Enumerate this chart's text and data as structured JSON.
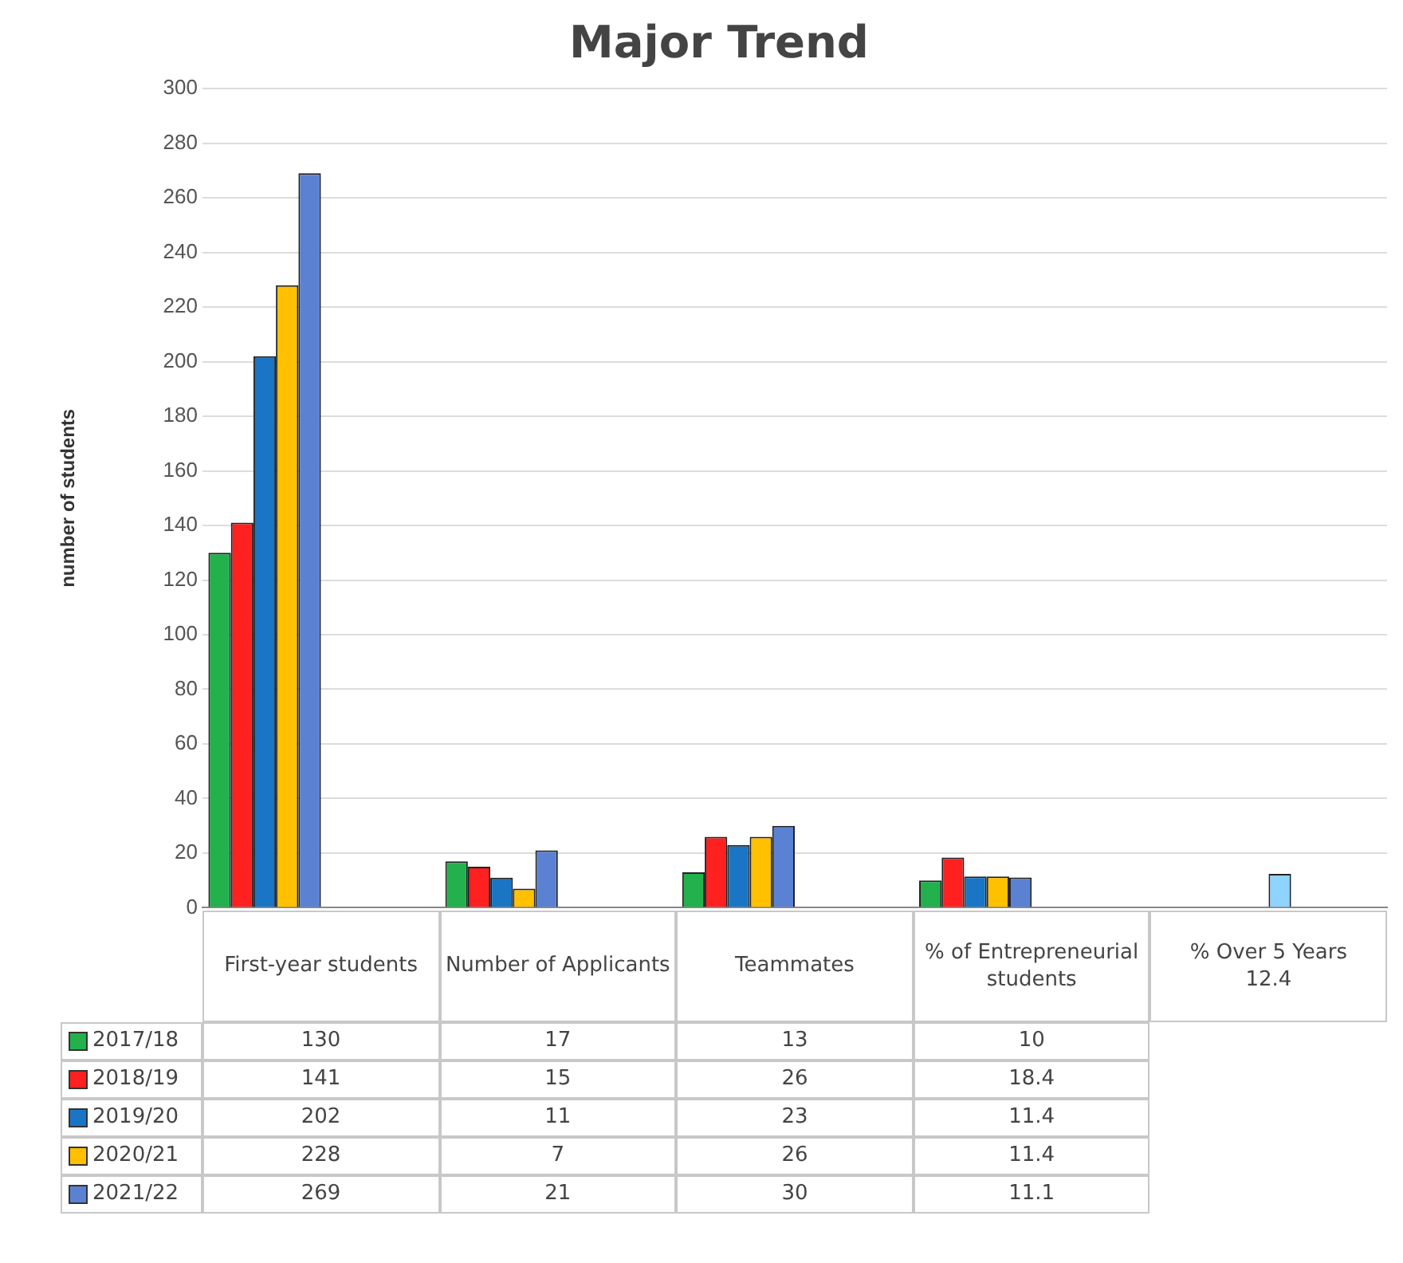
{
  "chart_data": {
    "type": "bar",
    "title": "Major Trend",
    "ylabel": "number of students",
    "categories": [
      "First-year students",
      "Number of Applicants",
      "Teammates",
      "% of Entrepreneurial students",
      "% Over 5 Years"
    ],
    "ylim": [
      0,
      300
    ],
    "yticks": [
      0,
      20,
      40,
      60,
      80,
      100,
      120,
      140,
      160,
      180,
      200,
      220,
      240,
      260,
      280,
      300
    ],
    "grid": "y",
    "legend": "bottom left",
    "series": [
      {
        "name": "2017/18",
        "color": "#22b14c",
        "values": [
          130,
          17,
          13,
          10,
          null
        ],
        "value_labels": [
          "130",
          "17",
          "13",
          "10",
          null
        ]
      },
      {
        "name": "2018/19",
        "color": "#ff2020",
        "values": [
          141,
          15,
          26,
          18.4,
          null
        ],
        "value_labels": [
          "141",
          "15",
          "26",
          "18.4",
          null
        ]
      },
      {
        "name": "2019/20",
        "color": "#1a75c5",
        "values": [
          202,
          11,
          23,
          11.4,
          null
        ],
        "value_labels": [
          "202",
          "11",
          "23",
          "11.4",
          null
        ]
      },
      {
        "name": "2020/21",
        "color": "#ffc000",
        "values": [
          228,
          7,
          26,
          11.4,
          null
        ],
        "value_labels": [
          "228",
          "7",
          "26",
          "11.4",
          null
        ]
      },
      {
        "name": "2021/22",
        "color": "#5b82d2",
        "values": [
          269,
          21,
          30,
          11.1,
          null
        ],
        "value_labels": [
          "269",
          "21",
          "30",
          "11.1",
          null
        ]
      },
      {
        "color": "#8fd3ff",
        "values": [
          null,
          null,
          null,
          null,
          12.4
        ],
        "value_labels": [
          null,
          null,
          null,
          null,
          "12.4"
        ]
      }
    ]
  }
}
